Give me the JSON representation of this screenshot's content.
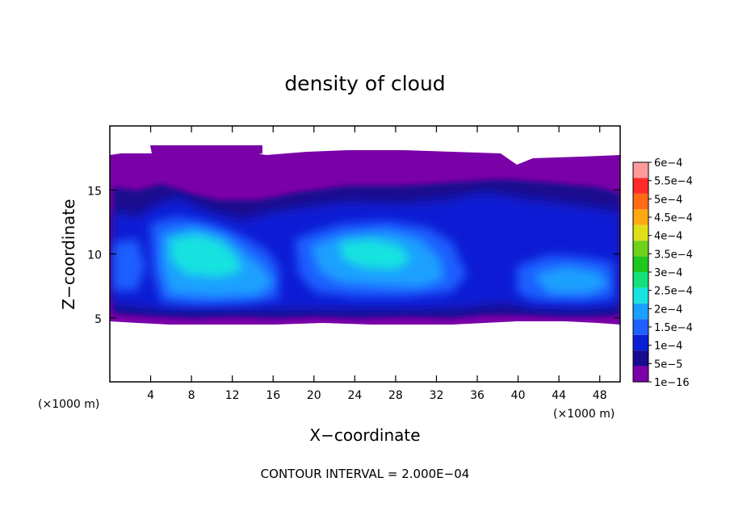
{
  "chart_data": {
    "type": "heatmap",
    "title": "density of cloud",
    "xlabel": "X−coordinate",
    "ylabel": "Z−coordinate",
    "x_unit": "(×1000 m)",
    "x_unit_right": "(×1000 m)",
    "xlim": [
      0,
      50
    ],
    "ylim": [
      0,
      20
    ],
    "x_ticks": [
      4,
      8,
      12,
      16,
      20,
      24,
      28,
      32,
      36,
      40,
      44,
      48
    ],
    "x_tick_labels": [
      "4",
      "8",
      "12",
      "16",
      "20",
      "24",
      "28",
      "32",
      "36",
      "40",
      "44",
      "48"
    ],
    "y_ticks": [
      5,
      10,
      15
    ],
    "y_tick_labels": [
      "5",
      "10",
      "15"
    ],
    "contour_interval": "CONTOUR INTERVAL = 2.000E−04",
    "colorbar": {
      "levels": [
        "1e−16",
        "5e−5",
        "1e−4",
        "1.5e−4",
        "2e−4",
        "2.5e−4",
        "3e−4",
        "3.5e−4",
        "4e−4",
        "4.5e−4",
        "5e−4",
        "5.5e−4",
        "6e−4"
      ],
      "colors": [
        "#7a00a8",
        "#1a0a8f",
        "#0a1fd4",
        "#1f5fff",
        "#1aa0ff",
        "#19e3e0",
        "#16e07a",
        "#1ec81e",
        "#6fd21a",
        "#e0e01a",
        "#ffaa10",
        "#ff6a14",
        "#ff2a2a",
        "#ff9a9a"
      ]
    },
    "field_summary": {
      "cloud_base_z": 5,
      "cloud_top_z": 18,
      "core_regions_x": [
        [
          5,
          15
        ],
        [
          19,
          35
        ],
        [
          40,
          49
        ]
      ]
    }
  }
}
